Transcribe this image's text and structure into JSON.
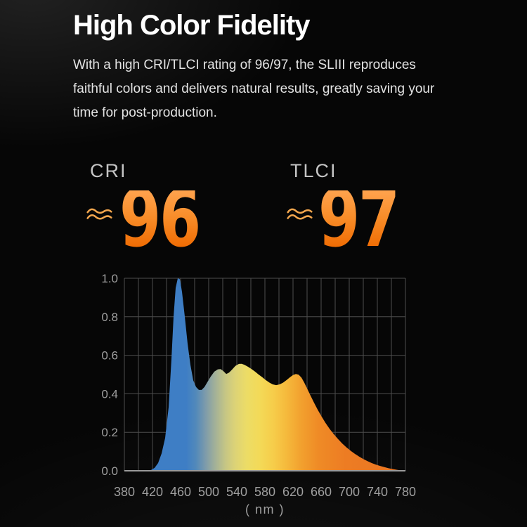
{
  "hero": {
    "title": "High Color Fidelity",
    "description_lines": [
      "With a high CRI/TLCI rating of 96/97, the SLIII reproduces",
      "faithful colors and delivers natural results, greatly saving your",
      "time for post-production."
    ]
  },
  "stats": [
    {
      "label": "CRI",
      "approx_symbol": "≈",
      "value": "96"
    },
    {
      "label": "TLCI",
      "approx_symbol": "≈",
      "value": "97"
    }
  ],
  "colors": {
    "background": "#060606",
    "title_text": "#ffffff",
    "body_text": "#e3e3e3",
    "stat_label_text": "#c4c4c4",
    "stat_value_gradient_top": "#FFA34E",
    "stat_value_gradient_bottom": "#EF6B02",
    "wave_orange": "#F3A64E",
    "grid_line": "#4d4d4d",
    "bottom_axis_line": "#9a9a9a",
    "tick_label_text": "#9f9f9f",
    "spectrum_blue": "#3E7EC5",
    "spectrum_yellow": "#F3DA58",
    "spectrum_orange": "#EA7522"
  },
  "chart_data": {
    "type": "area",
    "series_name": "relative spectral power distribution",
    "xlabel": "( nm )",
    "xlim": [
      380,
      780
    ],
    "ylim": [
      0,
      1
    ],
    "x_grid_step": 20,
    "y_grid_step": 0.2,
    "grid": true,
    "x_tick_labels": [
      "380",
      "420",
      "460",
      "500",
      "540",
      "580",
      "620",
      "660",
      "700",
      "740",
      "780"
    ],
    "y_tick_labels": [
      "1.0",
      "0.8",
      "0.6",
      "0.4",
      "0.2",
      "0.0"
    ],
    "points": [
      [
        413,
        0
      ],
      [
        418,
        0.004
      ],
      [
        423,
        0.015
      ],
      [
        428,
        0.04
      ],
      [
        433,
        0.09
      ],
      [
        438,
        0.17
      ],
      [
        443,
        0.33
      ],
      [
        447,
        0.58
      ],
      [
        450,
        0.8
      ],
      [
        453,
        0.95
      ],
      [
        456,
        1.0
      ],
      [
        459,
        0.995
      ],
      [
        462,
        0.93
      ],
      [
        466,
        0.8
      ],
      [
        470,
        0.66
      ],
      [
        474,
        0.55
      ],
      [
        478,
        0.47
      ],
      [
        482,
        0.435
      ],
      [
        486,
        0.42
      ],
      [
        490,
        0.42
      ],
      [
        494,
        0.435
      ],
      [
        498,
        0.46
      ],
      [
        503,
        0.49
      ],
      [
        508,
        0.515
      ],
      [
        513,
        0.527
      ],
      [
        517,
        0.528
      ],
      [
        521,
        0.517
      ],
      [
        525,
        0.503
      ],
      [
        529,
        0.51
      ],
      [
        533,
        0.525
      ],
      [
        538,
        0.545
      ],
      [
        543,
        0.555
      ],
      [
        547,
        0.556
      ],
      [
        551,
        0.55
      ],
      [
        556,
        0.54
      ],
      [
        561,
        0.528
      ],
      [
        566,
        0.515
      ],
      [
        571,
        0.5
      ],
      [
        576,
        0.487
      ],
      [
        581,
        0.472
      ],
      [
        586,
        0.459
      ],
      [
        591,
        0.449
      ],
      [
        596,
        0.445
      ],
      [
        601,
        0.449
      ],
      [
        606,
        0.458
      ],
      [
        611,
        0.472
      ],
      [
        616,
        0.487
      ],
      [
        620,
        0.497
      ],
      [
        624,
        0.503
      ],
      [
        628,
        0.499
      ],
      [
        632,
        0.484
      ],
      [
        636,
        0.458
      ],
      [
        640,
        0.428
      ],
      [
        645,
        0.39
      ],
      [
        650,
        0.353
      ],
      [
        655,
        0.318
      ],
      [
        660,
        0.286
      ],
      [
        666,
        0.25
      ],
      [
        672,
        0.218
      ],
      [
        678,
        0.19
      ],
      [
        684,
        0.165
      ],
      [
        690,
        0.142
      ],
      [
        696,
        0.122
      ],
      [
        702,
        0.104
      ],
      [
        708,
        0.088
      ],
      [
        714,
        0.074
      ],
      [
        720,
        0.061
      ],
      [
        726,
        0.05
      ],
      [
        732,
        0.04
      ],
      [
        738,
        0.032
      ],
      [
        744,
        0.025
      ],
      [
        750,
        0.019
      ],
      [
        756,
        0.013
      ],
      [
        762,
        0.009
      ],
      [
        768,
        0.005
      ],
      [
        774,
        0.002
      ],
      [
        780,
        0
      ]
    ],
    "gradient_stops": [
      {
        "nm": 380,
        "color": "#3E7EC5"
      },
      {
        "nm": 468,
        "color": "#3E7EC5"
      },
      {
        "nm": 482,
        "color": "#5289BA"
      },
      {
        "nm": 496,
        "color": "#7F9CAA"
      },
      {
        "nm": 510,
        "color": "#A5B297"
      },
      {
        "nm": 524,
        "color": "#C6C684"
      },
      {
        "nm": 538,
        "color": "#DDD376"
      },
      {
        "nm": 554,
        "color": "#ECDC66"
      },
      {
        "nm": 572,
        "color": "#F3DA58"
      },
      {
        "nm": 592,
        "color": "#F6CD4A"
      },
      {
        "nm": 612,
        "color": "#F5B83B"
      },
      {
        "nm": 632,
        "color": "#F2A02E"
      },
      {
        "nm": 656,
        "color": "#EF8B26"
      },
      {
        "nm": 695,
        "color": "#ED7C23"
      },
      {
        "nm": 780,
        "color": "#EA7522"
      }
    ]
  }
}
